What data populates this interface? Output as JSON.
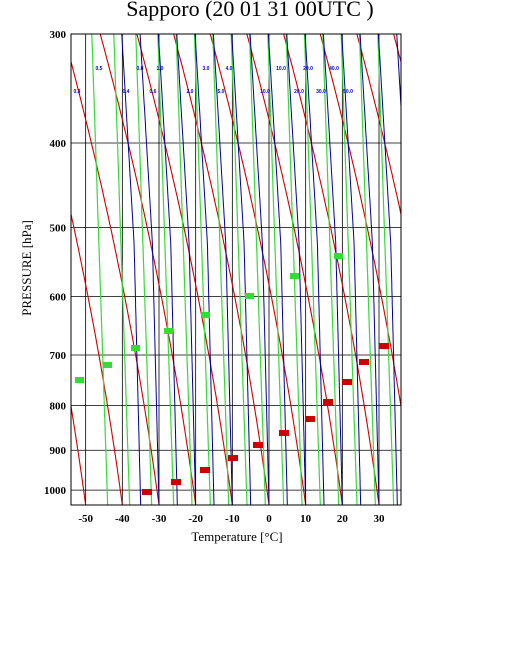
{
  "chart_data": {
    "type": "line",
    "title": "Sapporo (20 01 31 00UTC )",
    "xlabel": "Temperature  [°C]",
    "ylabel": "PRESSURE [hPa]",
    "xlim": [
      -54,
      36
    ],
    "ylim": [
      1040,
      300
    ],
    "y_scale": "log",
    "x_ticks": [
      -50,
      -40,
      -30,
      -20,
      -10,
      0,
      10,
      20,
      30
    ],
    "x_tick_labels": [
      "-50",
      "-40",
      "-30",
      "-20",
      "-10",
      "0",
      "10",
      "20",
      "30"
    ],
    "y_ticks": [
      300,
      400,
      500,
      600,
      700,
      800,
      900,
      1000
    ],
    "y_tick_labels": [
      "300",
      "400",
      "500",
      "600",
      "700",
      "800",
      "900",
      "1000"
    ],
    "grid": true,
    "skew_deg_per_log_decade": 58,
    "series": [
      {
        "kind": "isotherm",
        "color": "#000000",
        "values": [
          -50,
          -40,
          -30,
          -20,
          -10,
          0,
          10,
          20,
          30
        ]
      },
      {
        "kind": "dry_adiabat",
        "color": "#cc0000",
        "values": [
          -40,
          -30,
          -20,
          -10,
          0,
          10,
          20,
          30,
          40,
          50,
          60,
          70,
          80,
          90,
          100,
          110,
          120,
          130,
          140,
          150,
          160
        ]
      },
      {
        "kind": "moist_adiabat",
        "color": "#000099",
        "values": [
          -35,
          -30,
          -25,
          -20,
          -15,
          -10,
          -5,
          0,
          5,
          10,
          15,
          20,
          25,
          30,
          35,
          40
        ]
      },
      {
        "kind": "mixing_ratio",
        "color": "#33dd33",
        "values": [
          -48,
          -42,
          -36,
          -30,
          -25,
          -20,
          -15,
          -10,
          -5,
          0,
          5,
          10,
          15,
          20,
          25,
          30
        ]
      }
    ],
    "labels_top_row1": [
      "0.5",
      "0.8",
      "1.0",
      "3.0",
      "4.0",
      "10.0",
      "20.0",
      "40.0"
    ],
    "labels_top_row2": [
      "0.3",
      "0.4",
      "0.6",
      "2.0",
      "5.0",
      "10.0",
      "20.0",
      "30.0",
      "50.0"
    ],
    "labels_green": [
      "",
      "",
      "",
      "",
      "",
      "",
      "",
      "",
      "",
      ""
    ],
    "labels_red": [
      "",
      "",
      "",
      "",
      "",
      "",
      "",
      "",
      "",
      "",
      ""
    ]
  },
  "colors": {
    "isotherm": "#000000",
    "dry_adiabat": "#cc0000",
    "moist_adiabat": "#000099",
    "mixing_ratio": "#33dd33",
    "label_blue": "#0000cc"
  }
}
